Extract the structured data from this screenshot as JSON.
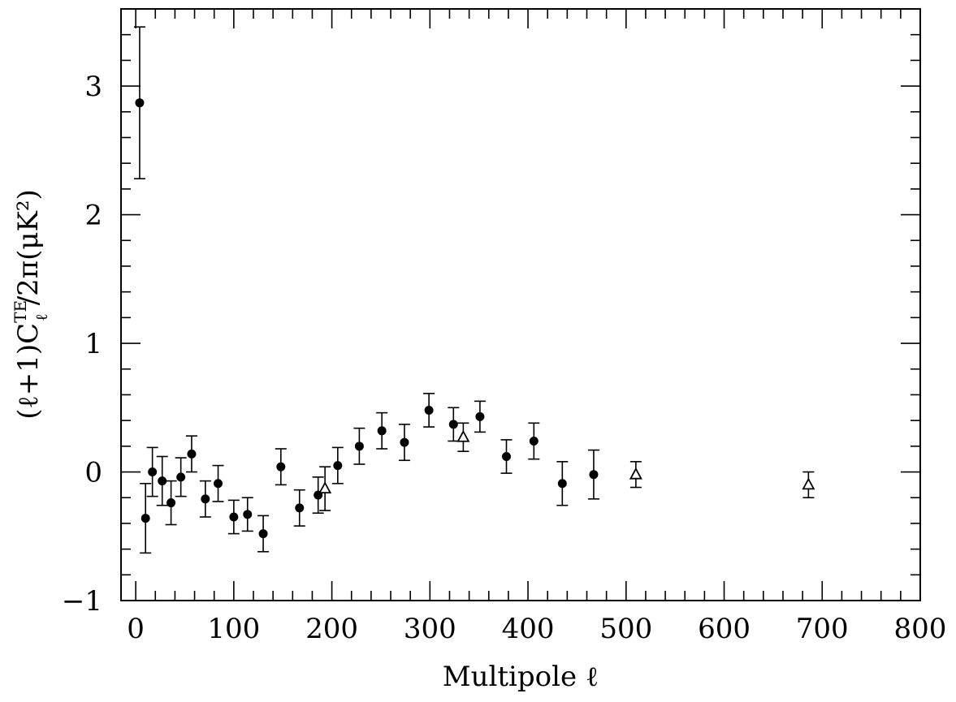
{
  "chart_data": {
    "type": "scatter",
    "xlabel": "Multipole ℓ",
    "ylabel_parts": {
      "pre": "(ℓ+1)C",
      "sup": "TE",
      "sub": "ℓ",
      "post": "/2π(μK²)"
    },
    "xlim": [
      -15,
      800
    ],
    "ylim": [
      -1,
      3.6
    ],
    "x_ticks": [
      0,
      100,
      200,
      300,
      400,
      500,
      600,
      700,
      800
    ],
    "x_tick_labels": [
      "0",
      "100",
      "200",
      "300",
      "400",
      "500",
      "600",
      "700",
      "800"
    ],
    "x_minor_step": 20,
    "y_ticks": [
      -1,
      0,
      1,
      2,
      3
    ],
    "y_tick_labels": [
      "−1",
      "0",
      "1",
      "2",
      "3"
    ],
    "y_minor_step": 0.2,
    "series": [
      {
        "marker": "filled-circle",
        "points": [
          {
            "x": 4,
            "y": 2.87,
            "err": 0.59
          },
          {
            "x": 10,
            "y": -0.36,
            "err": 0.27
          },
          {
            "x": 17,
            "y": 0.0,
            "err": 0.19
          },
          {
            "x": 27,
            "y": -0.07,
            "err": 0.19
          },
          {
            "x": 36,
            "y": -0.24,
            "err": 0.17
          },
          {
            "x": 46,
            "y": -0.04,
            "err": 0.15
          },
          {
            "x": 57,
            "y": 0.14,
            "err": 0.14
          },
          {
            "x": 71,
            "y": -0.21,
            "err": 0.14
          },
          {
            "x": 84,
            "y": -0.09,
            "err": 0.14
          },
          {
            "x": 100,
            "y": -0.35,
            "err": 0.13
          },
          {
            "x": 114,
            "y": -0.33,
            "err": 0.13
          },
          {
            "x": 130,
            "y": -0.48,
            "err": 0.14
          },
          {
            "x": 148,
            "y": 0.04,
            "err": 0.14
          },
          {
            "x": 167,
            "y": -0.28,
            "err": 0.14
          },
          {
            "x": 186,
            "y": -0.18,
            "err": 0.14
          },
          {
            "x": 206,
            "y": 0.05,
            "err": 0.14
          },
          {
            "x": 228,
            "y": 0.2,
            "err": 0.14
          },
          {
            "x": 251,
            "y": 0.32,
            "err": 0.14
          },
          {
            "x": 274,
            "y": 0.23,
            "err": 0.14
          },
          {
            "x": 299,
            "y": 0.48,
            "err": 0.13
          },
          {
            "x": 324,
            "y": 0.37,
            "err": 0.13
          },
          {
            "x": 351,
            "y": 0.43,
            "err": 0.12
          },
          {
            "x": 378,
            "y": 0.12,
            "err": 0.13
          },
          {
            "x": 406,
            "y": 0.24,
            "err": 0.14
          },
          {
            "x": 435,
            "y": -0.09,
            "err": 0.17
          },
          {
            "x": 467,
            "y": -0.02,
            "err": 0.19
          }
        ]
      },
      {
        "marker": "open-triangle",
        "points": [
          {
            "x": 193,
            "y": -0.13,
            "err": 0.17
          },
          {
            "x": 334,
            "y": 0.27,
            "err": 0.11
          },
          {
            "x": 510,
            "y": -0.02,
            "err": 0.1
          },
          {
            "x": 686,
            "y": -0.1,
            "err": 0.1
          }
        ]
      }
    ]
  }
}
